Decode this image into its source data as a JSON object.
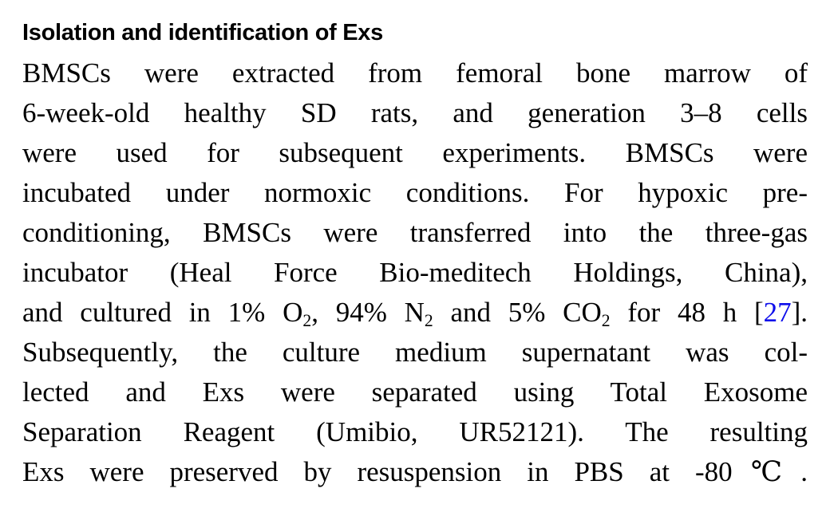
{
  "page": {
    "background_color": "#ffffff",
    "text_color": "#000000",
    "link_color": "#0d0deb"
  },
  "section": {
    "heading": "Isolation and identification of Exs",
    "paragraph_lines": [
      {
        "segments": [
          {
            "text": "BMSCs were extracted from femoral bone marrow of"
          }
        ]
      },
      {
        "segments": [
          {
            "text": "6-week-old healthy SD rats, and generation 3–8 cells"
          }
        ]
      },
      {
        "segments": [
          {
            "text": "were used for subsequent experiments. BMSCs were"
          }
        ]
      },
      {
        "segments": [
          {
            "text": "incubated under normoxic conditions. For hypoxic pre-"
          }
        ]
      },
      {
        "segments": [
          {
            "text": "conditioning, BMSCs were transferred into the three-gas"
          }
        ]
      },
      {
        "segments": [
          {
            "text": "incubator (Heal Force Bio-meditech Holdings, China),"
          }
        ]
      },
      {
        "segments": [
          {
            "text": "and cultured in 1% O"
          },
          {
            "text": "2",
            "style": "subscript"
          },
          {
            "text": ", 94% N"
          },
          {
            "text": "2",
            "style": "subscript"
          },
          {
            "text": " and 5% CO"
          },
          {
            "text": "2",
            "style": "subscript"
          },
          {
            "text": " for 48 h ["
          },
          {
            "text": "27",
            "style": "link"
          },
          {
            "text": "]."
          }
        ]
      },
      {
        "segments": [
          {
            "text": "Subsequently, the culture medium supernatant was col-"
          }
        ]
      },
      {
        "segments": [
          {
            "text": "lected and Exs were separated using Total Exosome"
          }
        ]
      },
      {
        "segments": [
          {
            "text": "Separation Reagent (Umibio, UR52121). The resulting"
          }
        ]
      },
      {
        "segments": [
          {
            "text": "Exs were preserved by resuspension in PBS at -80℃."
          }
        ]
      }
    ]
  }
}
